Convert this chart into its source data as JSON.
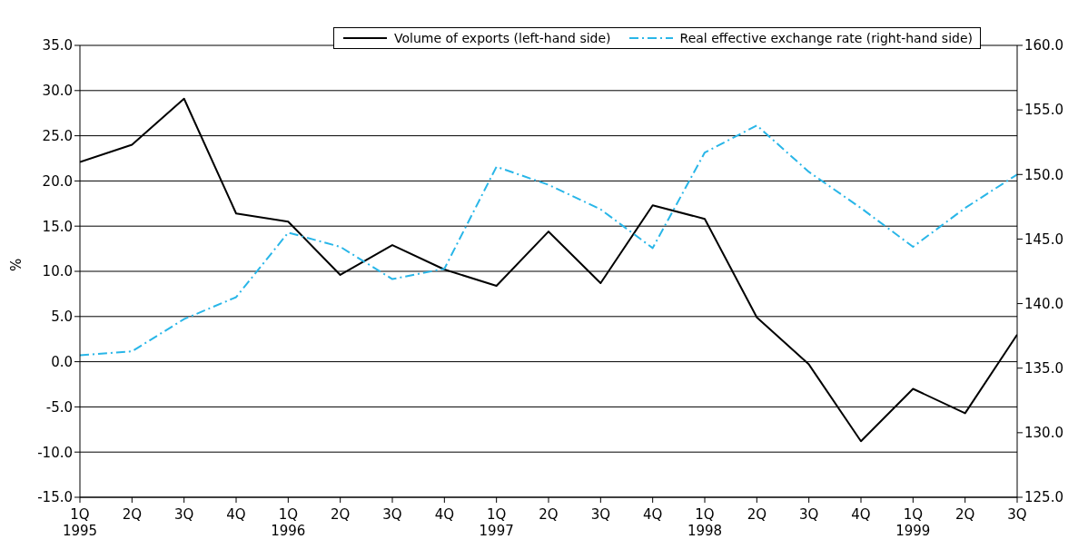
{
  "chart_data": {
    "type": "line",
    "ylabel": "%",
    "categories": [
      "1Q\n1995",
      "2Q",
      "3Q",
      "4Q",
      "1Q\n1996",
      "2Q",
      "3Q",
      "4Q",
      "1Q\n1997",
      "2Q",
      "3Q",
      "4Q",
      "1Q\n1998",
      "2Q",
      "3Q",
      "4Q",
      "1Q\n1999",
      "2Q",
      "3Q"
    ],
    "series": [
      {
        "name": "Volume of exports (left-hand side)",
        "color": "#000000",
        "line_style": "solid",
        "values": [
          22.1,
          24.0,
          29.1,
          16.4,
          15.5,
          9.6,
          12.9,
          10.2,
          8.4,
          14.4,
          8.7,
          17.3,
          15.8,
          4.9,
          -0.3,
          -8.8,
          -3.0,
          -5.7,
          3.0
        ]
      },
      {
        "name": "Real effective exchange rate (right-hand side)",
        "color": "#29b6e8",
        "line_style": "dashed",
        "axis": "y2",
        "values": [
          136.0,
          136.3,
          138.8,
          140.5,
          145.5,
          144.4,
          141.9,
          142.7,
          150.6,
          149.2,
          147.3,
          144.3,
          151.7,
          153.8,
          150.2,
          147.4,
          144.4,
          147.4,
          150.0
        ]
      }
    ],
    "ylim": [
      -15,
      35
    ],
    "yticks": [
      {
        "value": -15,
        "label": "-15.0"
      },
      {
        "value": -10,
        "label": "-10.0"
      },
      {
        "value": -5,
        "label": "-5.0"
      },
      {
        "value": 0,
        "label": "0.0"
      },
      {
        "value": 5,
        "label": "5.0"
      },
      {
        "value": 10,
        "label": "10.0"
      },
      {
        "value": 15,
        "label": "15.0"
      },
      {
        "value": 20,
        "label": "20.0"
      },
      {
        "value": 25,
        "label": "25.0"
      },
      {
        "value": 30,
        "label": "30.0"
      },
      {
        "value": 35,
        "label": "35.0"
      }
    ],
    "y2lim": [
      125,
      160
    ],
    "y2ticks": [
      {
        "value": 125,
        "label": "125.0"
      },
      {
        "value": 130,
        "label": "130.0"
      },
      {
        "value": 135,
        "label": "135.0"
      },
      {
        "value": 140,
        "label": "140.0"
      },
      {
        "value": 145,
        "label": "145.0"
      },
      {
        "value": 150,
        "label": "150.0"
      },
      {
        "value": 155,
        "label": "155.0"
      },
      {
        "value": 160,
        "label": "160.0"
      }
    ],
    "grid": "y",
    "legend": "top right",
    "marker": "none"
  }
}
